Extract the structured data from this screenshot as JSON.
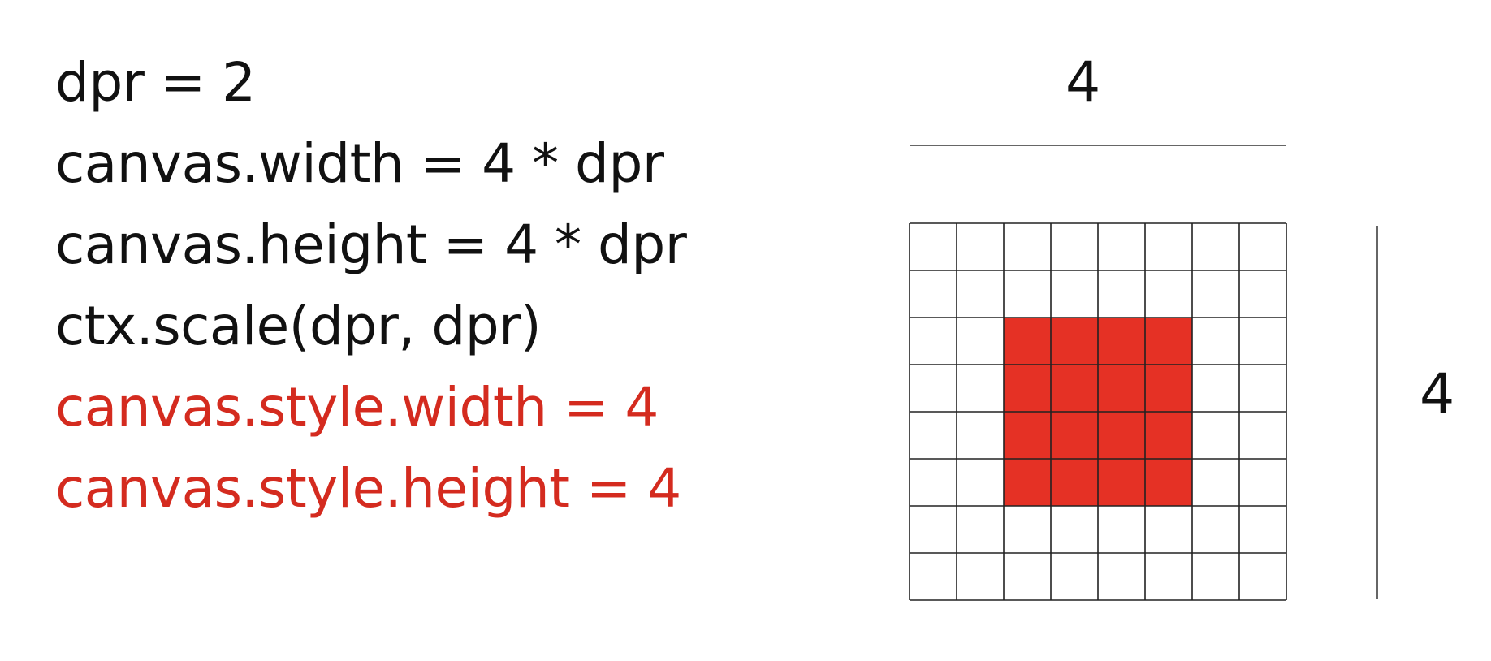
{
  "code_lines": [
    {
      "text": "dpr = 2",
      "highlight": false
    },
    {
      "text": "canvas.width = 4 * dpr",
      "highlight": false
    },
    {
      "text": "canvas.height = 4 * dpr",
      "highlight": false
    },
    {
      "text": "ctx.scale(dpr, dpr)",
      "highlight": false
    },
    {
      "text": "canvas.style.width = 4",
      "highlight": true
    },
    {
      "text": "canvas.style.height = 4",
      "highlight": true
    }
  ],
  "diagram": {
    "width_label": "4",
    "height_label": "4",
    "grid_cols": 8,
    "grid_rows": 8,
    "filled_cells": {
      "col_start": 2,
      "col_end": 5,
      "row_start": 2,
      "row_end": 5
    },
    "fill_color": "#e53125",
    "grid_line_color": "#222222",
    "dimension_line_color": "#666666"
  }
}
